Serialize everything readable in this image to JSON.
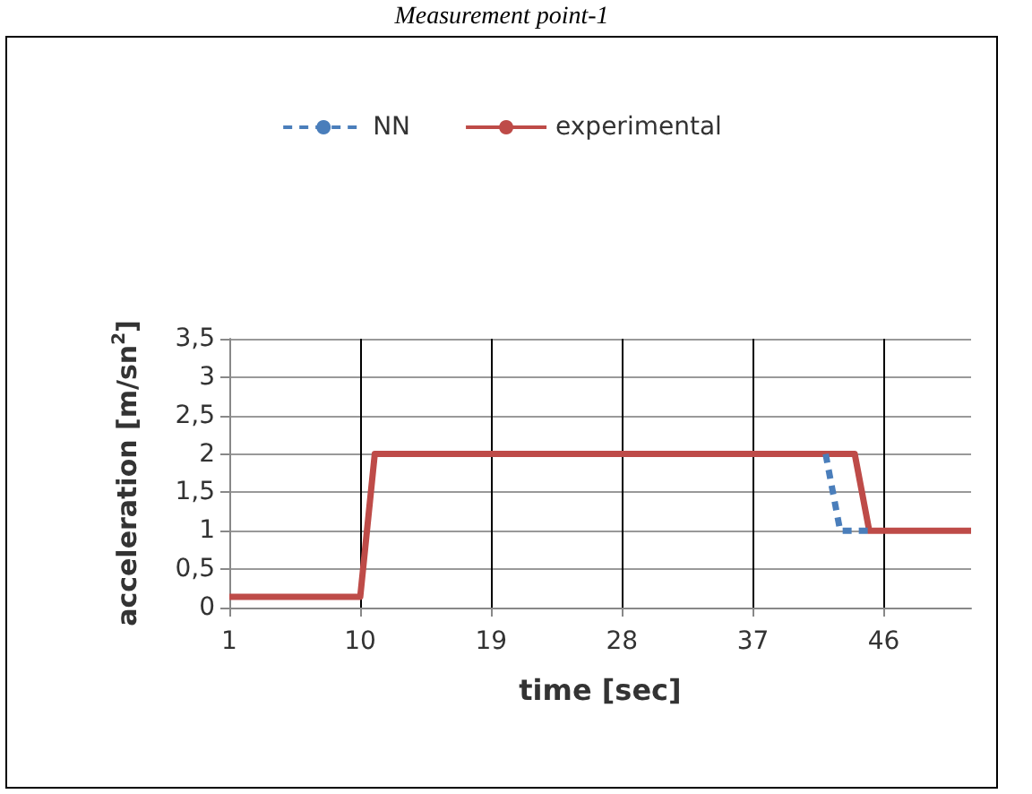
{
  "chart_data": {
    "type": "line",
    "title": "Measurement point-1",
    "xlabel": "time [sec]",
    "ylabel": "acceleration [m/sn$^{2}$]",
    "categories": [
      "1",
      null,
      null,
      null,
      null,
      null,
      null,
      null,
      null,
      "10",
      null,
      null,
      null,
      null,
      null,
      null,
      null,
      null,
      "19",
      null,
      null,
      null,
      null,
      null,
      null,
      null,
      null,
      "28",
      null,
      null,
      null,
      null,
      null,
      null,
      null,
      null,
      "37",
      null,
      null,
      null,
      null,
      null,
      null,
      null,
      null,
      "46",
      null,
      null,
      null,
      null,
      null,
      null
    ],
    "series": [
      {
        "name": "NN",
        "color": "#4a7ebb",
        "line_style": "dashed",
        "values": [
          null,
          null,
          null,
          null,
          null,
          null,
          null,
          null,
          null,
          null,
          null,
          null,
          null,
          null,
          null,
          null,
          null,
          null,
          null,
          null,
          null,
          null,
          null,
          null,
          null,
          null,
          null,
          null,
          null,
          null,
          null,
          null,
          null,
          null,
          null,
          null,
          null,
          null,
          null,
          null,
          null,
          2,
          1,
          1,
          1,
          null,
          null,
          null,
          null,
          null,
          null,
          null
        ]
      },
      {
        "name": "experimental",
        "color": "#be4b48",
        "line_style": "solid",
        "values": [
          0.14,
          0.14,
          0.14,
          0.14,
          0.14,
          0.14,
          0.14,
          0.14,
          0.14,
          0.14,
          2,
          2,
          2,
          2,
          2,
          2,
          2,
          2,
          2,
          2,
          2,
          2,
          2,
          2,
          2,
          2,
          2,
          2,
          2,
          2,
          2,
          2,
          2,
          2,
          2,
          2,
          2,
          2,
          2,
          2,
          2,
          2,
          2,
          2,
          1,
          1,
          1,
          1,
          1,
          1,
          1,
          1
        ]
      }
    ],
    "ylim": [
      0,
      3.5
    ],
    "yticks": [
      0,
      {
        "value": 0.5,
        "label": "0,5"
      },
      1,
      {
        "value": 1.5,
        "label": "1,5"
      },
      2,
      {
        "value": 2.5,
        "label": "2,5"
      },
      3,
      {
        "value": 3.5,
        "label": "3,5"
      }
    ],
    "grid": true,
    "legend": "top",
    "marker": "none"
  }
}
